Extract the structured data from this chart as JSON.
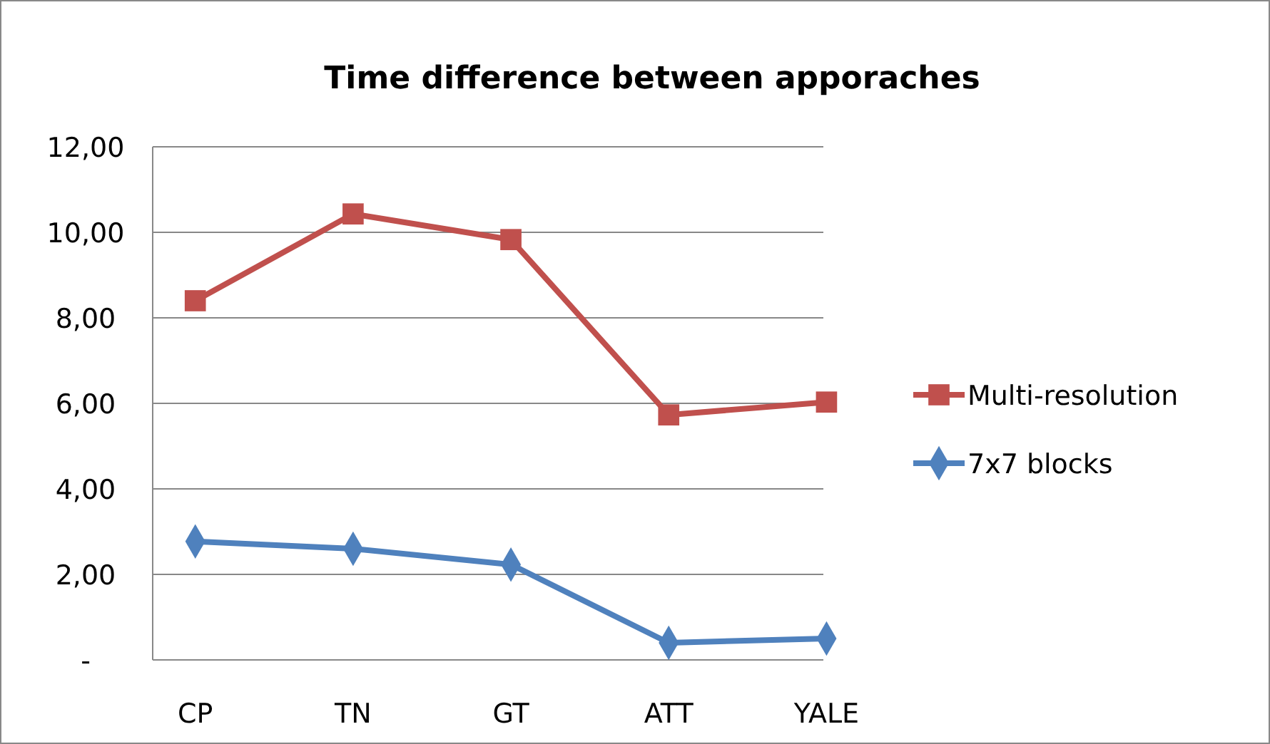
{
  "chart_data": {
    "type": "line",
    "title": "Time difference between apporaches",
    "categories": [
      "CP",
      "TN",
      "GT",
      "ATT",
      "YALE"
    ],
    "series": [
      {
        "name": "Multi-resolution",
        "color": "#c0504d",
        "marker": "square",
        "values": [
          8.4,
          10.43,
          9.83,
          5.73,
          6.03
        ]
      },
      {
        "name": "7x7 blocks",
        "color": "#4f81bd",
        "marker": "diamond",
        "values": [
          2.77,
          2.6,
          2.23,
          0.4,
          0.5
        ]
      }
    ],
    "ylim": [
      0,
      12
    ],
    "yticks": [
      {
        "value": 0,
        "label": "-"
      },
      {
        "value": 2,
        "label": "2,00"
      },
      {
        "value": 4,
        "label": "4,00"
      },
      {
        "value": 6,
        "label": "6,00"
      },
      {
        "value": 8,
        "label": "8,00"
      },
      {
        "value": 10,
        "label": "10,00"
      },
      {
        "value": 12,
        "label": "12,00"
      }
    ],
    "grid": "y",
    "legend": "right"
  }
}
